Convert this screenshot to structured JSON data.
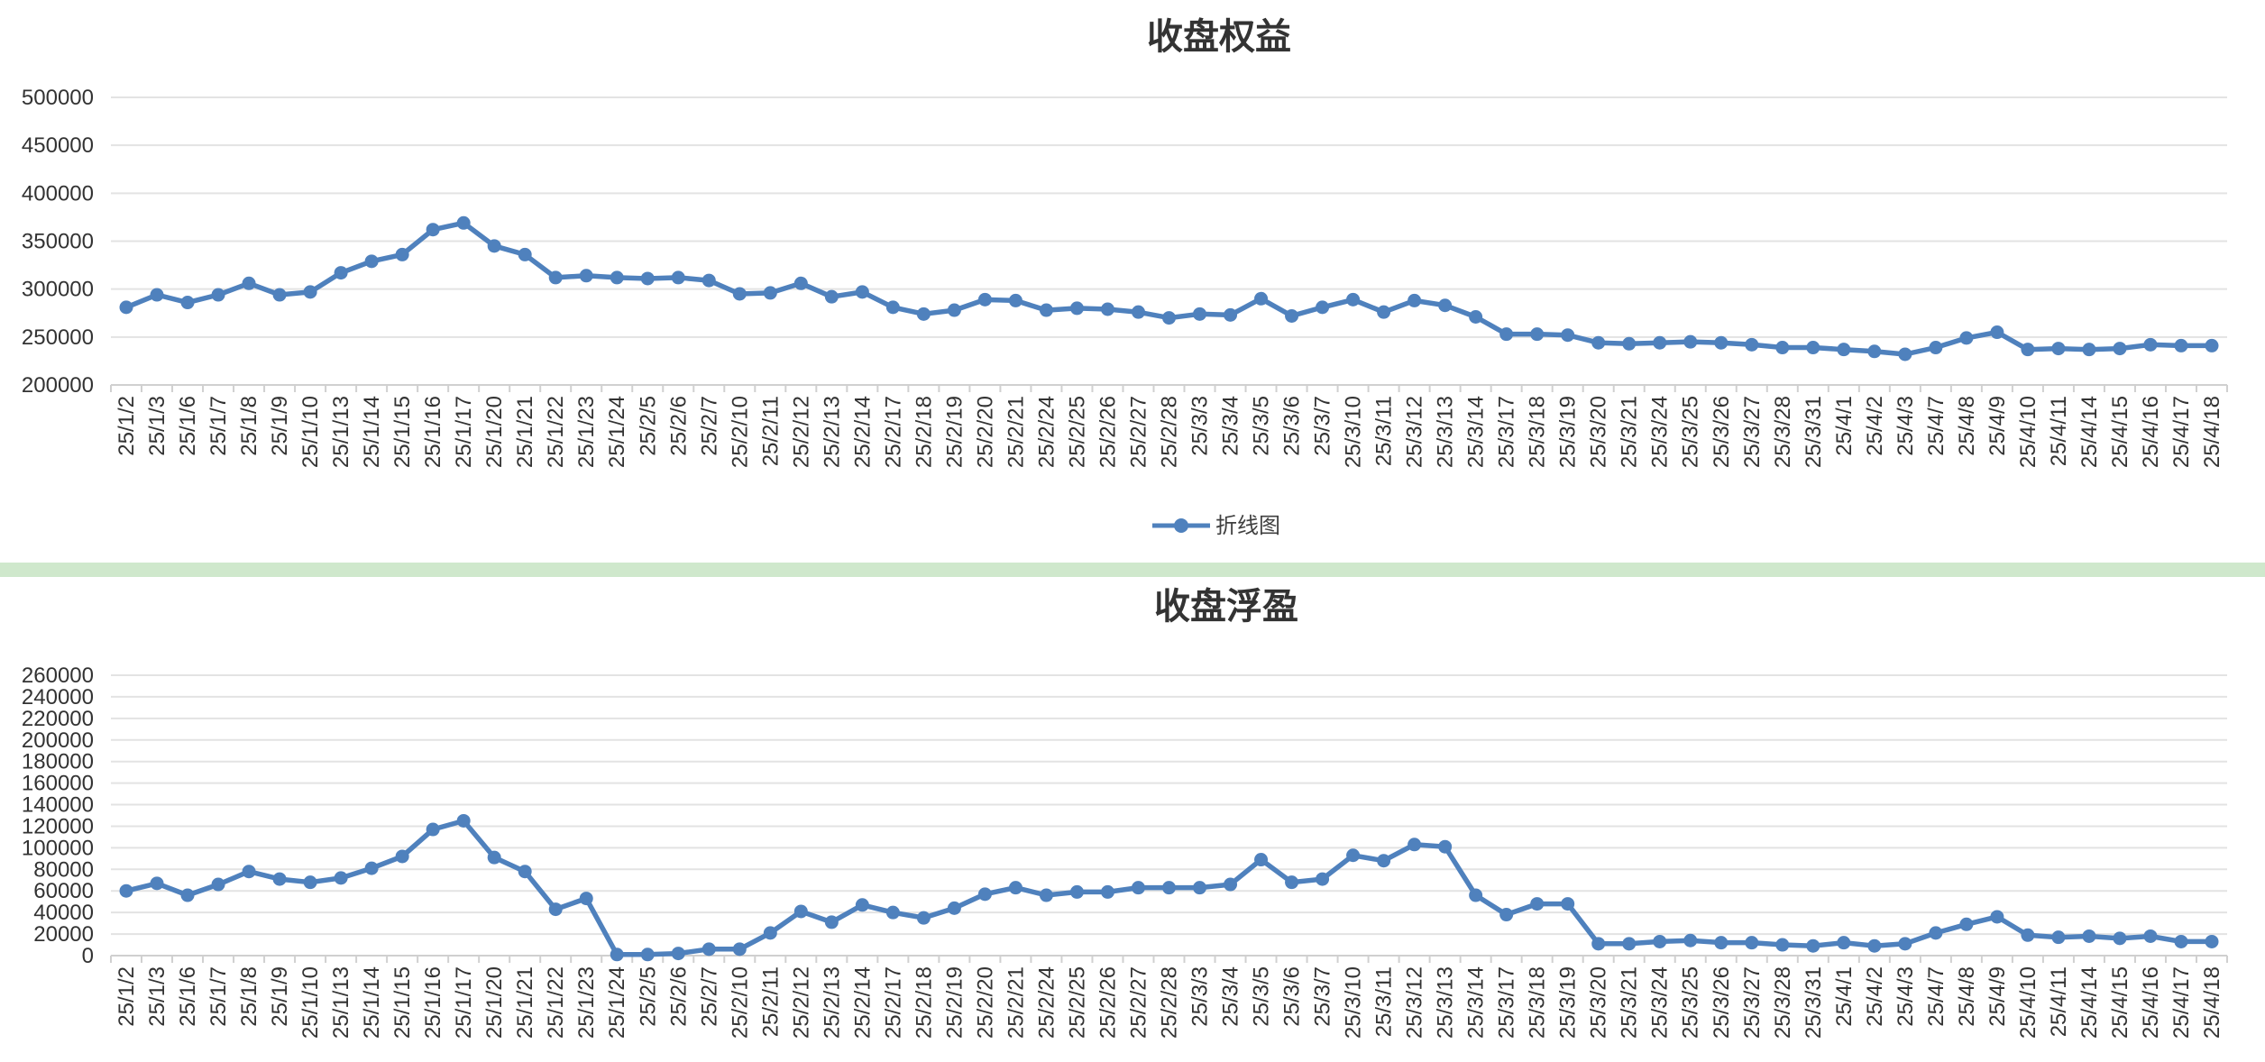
{
  "chart_data": [
    {
      "type": "line",
      "title": "收盘权益",
      "legend": "bottom",
      "grid": true,
      "ylim": [
        200000,
        500000
      ],
      "yticks": [
        "500000",
        "450000",
        "400000",
        "350000",
        "300000",
        "250000",
        "200000"
      ],
      "categories": [
        "25/1/2",
        "25/1/3",
        "25/1/6",
        "25/1/7",
        "25/1/8",
        "25/1/9",
        "25/1/10",
        "25/1/13",
        "25/1/14",
        "25/1/15",
        "25/1/16",
        "25/1/17",
        "25/1/20",
        "25/1/21",
        "25/1/22",
        "25/1/23",
        "25/1/24",
        "25/2/5",
        "25/2/6",
        "25/2/7",
        "25/2/10",
        "25/2/11",
        "25/2/12",
        "25/2/13",
        "25/2/14",
        "25/2/17",
        "25/2/18",
        "25/2/19",
        "25/2/20",
        "25/2/21",
        "25/2/24",
        "25/2/25",
        "25/2/26",
        "25/2/27",
        "25/2/28",
        "25/3/3",
        "25/3/4",
        "25/3/5",
        "25/3/6",
        "25/3/7",
        "25/3/10",
        "25/3/11",
        "25/3/12",
        "25/3/13",
        "25/3/14",
        "25/3/17",
        "25/3/18",
        "25/3/19",
        "25/3/20",
        "25/3/21",
        "25/3/24",
        "25/3/25",
        "25/3/26",
        "25/3/27",
        "25/3/28",
        "25/3/31",
        "25/4/1",
        "25/4/2",
        "25/4/3",
        "25/4/7",
        "25/4/8",
        "25/4/9",
        "25/4/10",
        "25/4/11",
        "25/4/14",
        "25/4/15",
        "25/4/16",
        "25/4/17",
        "25/4/18"
      ],
      "series": [
        {
          "name": "折线图",
          "color": "#4f81bd",
          "values": [
            281000,
            294000,
            286000,
            294000,
            306000,
            294000,
            297000,
            317000,
            329000,
            336000,
            362000,
            369000,
            345000,
            336000,
            312000,
            314000,
            312000,
            311000,
            312000,
            309000,
            295000,
            296000,
            306000,
            292000,
            297000,
            281000,
            274000,
            278000,
            289000,
            288000,
            278000,
            280000,
            279000,
            276000,
            270000,
            274000,
            273000,
            290000,
            272000,
            281000,
            289000,
            276000,
            288000,
            283000,
            271000,
            253000,
            253000,
            252000,
            244000,
            243000,
            244000,
            245000,
            244000,
            242000,
            239000,
            239000,
            237000,
            235000,
            232000,
            239000,
            249000,
            255000,
            237000,
            238000,
            237000,
            238000,
            242000,
            241000,
            241000
          ]
        }
      ]
    },
    {
      "type": "line",
      "title": "收盘浮盈",
      "grid": true,
      "ylim": [
        0,
        260000
      ],
      "yticks": [
        "260000",
        "240000",
        "220000",
        "200000",
        "180000",
        "160000",
        "140000",
        "120000",
        "100000",
        "80000",
        "60000",
        "40000",
        "20000",
        "0"
      ],
      "categories": [
        "25/1/2",
        "25/1/3",
        "25/1/6",
        "25/1/7",
        "25/1/8",
        "25/1/9",
        "25/1/10",
        "25/1/13",
        "25/1/14",
        "25/1/15",
        "25/1/16",
        "25/1/17",
        "25/1/20",
        "25/1/21",
        "25/1/22",
        "25/1/23",
        "25/1/24",
        "25/2/5",
        "25/2/6",
        "25/2/7",
        "25/2/10",
        "25/2/11",
        "25/2/12",
        "25/2/13",
        "25/2/14",
        "25/2/17",
        "25/2/18",
        "25/2/19",
        "25/2/20",
        "25/2/21",
        "25/2/24",
        "25/2/25",
        "25/2/26",
        "25/2/27",
        "25/2/28",
        "25/3/3",
        "25/3/4",
        "25/3/5",
        "25/3/6",
        "25/3/7",
        "25/3/10",
        "25/3/11",
        "25/3/12",
        "25/3/13",
        "25/3/14",
        "25/3/17",
        "25/3/18",
        "25/3/19",
        "25/3/20",
        "25/3/21",
        "25/3/24",
        "25/3/25",
        "25/3/26",
        "25/3/27",
        "25/3/28",
        "25/3/31",
        "25/4/1",
        "25/4/2",
        "25/4/3",
        "25/4/7",
        "25/4/8",
        "25/4/9",
        "25/4/10",
        "25/4/11",
        "25/4/14",
        "25/4/15",
        "25/4/16",
        "25/4/17",
        "25/4/18"
      ],
      "series": [
        {
          "color": "#4f81bd",
          "values": [
            60000,
            67000,
            56000,
            66000,
            78000,
            71000,
            68000,
            72000,
            81000,
            92000,
            117000,
            125000,
            91000,
            78000,
            43000,
            53000,
            1000,
            1000,
            2000,
            6000,
            6000,
            21000,
            41000,
            31000,
            47000,
            40000,
            35000,
            44000,
            57000,
            63000,
            56000,
            59000,
            59000,
            63000,
            63000,
            63000,
            66000,
            89000,
            68000,
            71000,
            93000,
            88000,
            103000,
            101000,
            56000,
            38000,
            48000,
            48000,
            11000,
            11000,
            13000,
            14000,
            12000,
            12000,
            10000,
            9000,
            12000,
            9000,
            11000,
            21000,
            29000,
            36000,
            19000,
            17000,
            18000,
            16000,
            18000,
            13000,
            13000
          ]
        }
      ]
    }
  ]
}
